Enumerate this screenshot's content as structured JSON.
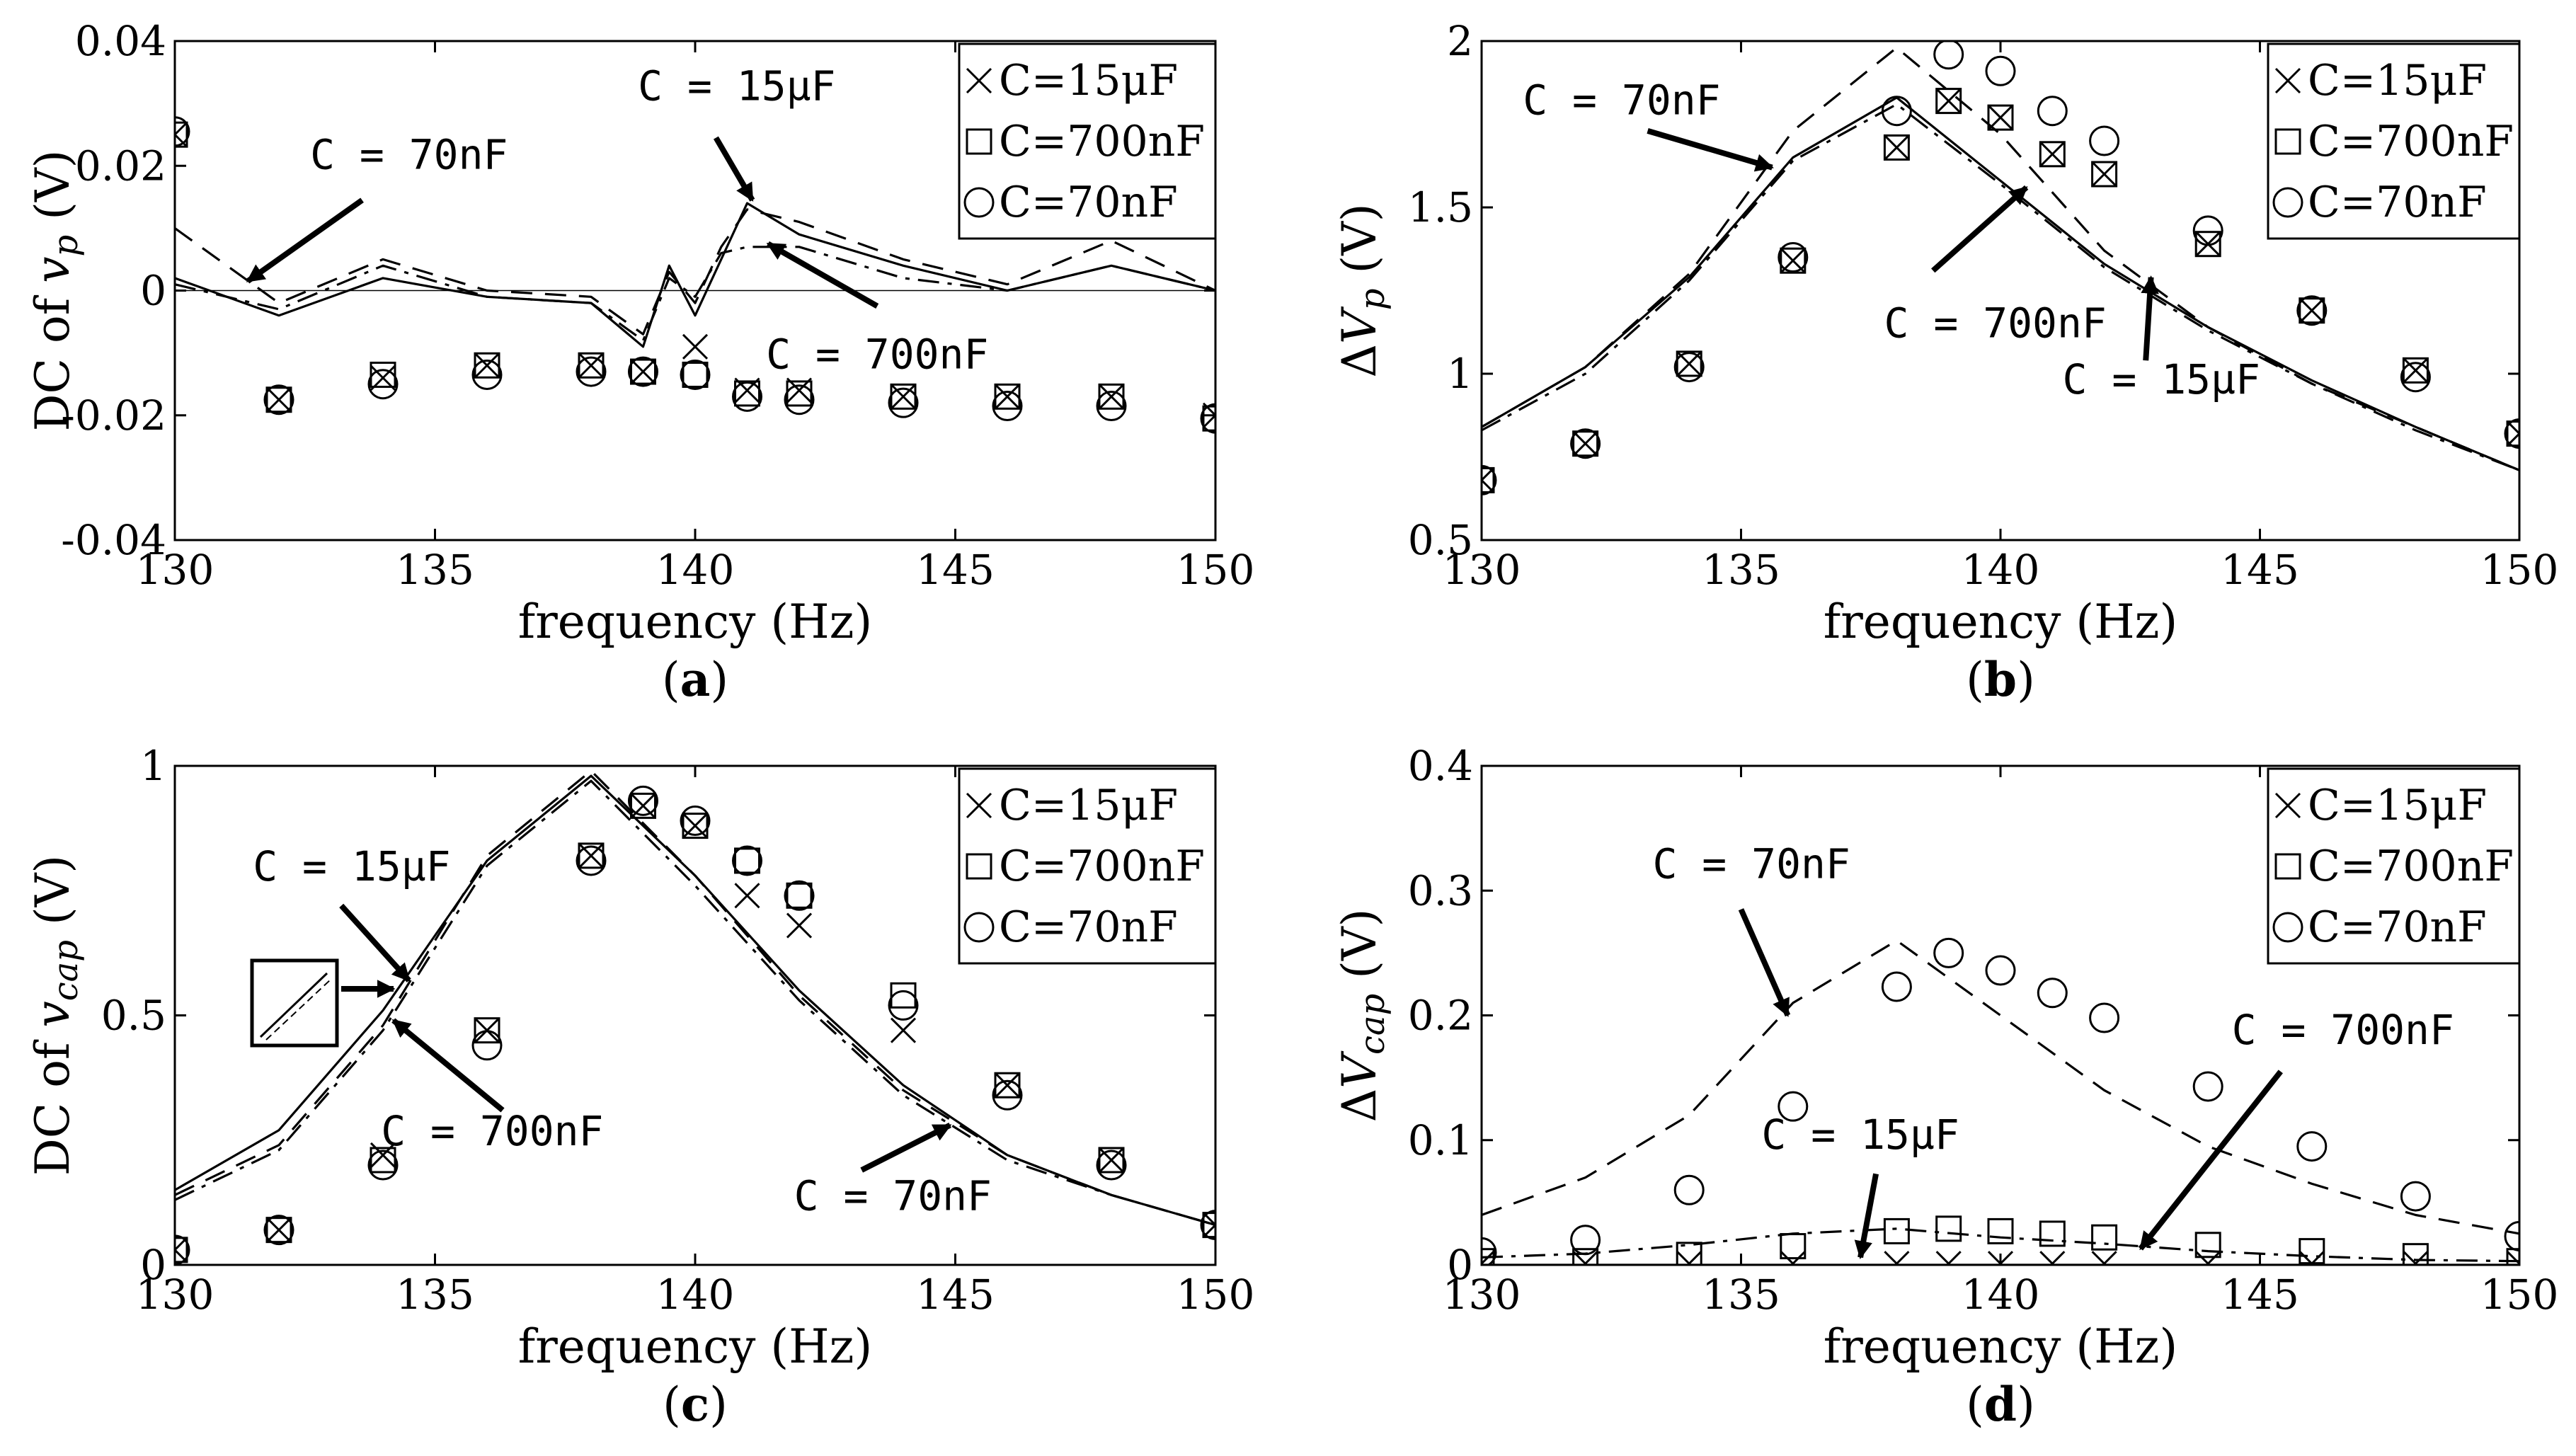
{
  "figure": {
    "styles": {
      "C=15μF": {
        "line": "solid",
        "marker": "x"
      },
      "C=700nF": {
        "line": "dashdot",
        "marker": "square"
      },
      "C=70nF": {
        "line": "dashed",
        "marker": "circle"
      }
    },
    "marker_color": "#000000",
    "line_color": "#000000"
  },
  "chart_data": [
    {
      "panel": "a",
      "panel_label": "(a)",
      "panel_letter": "a",
      "type": "line",
      "xlabel": "frequency (Hz)",
      "ylabel": "DC of vp (V)",
      "ylabel_parts": [
        "DC of ",
        "v",
        "p",
        " (V)"
      ],
      "xlim": [
        130,
        150
      ],
      "ylim": [
        -0.04,
        0.04
      ],
      "xticks": [
        "130",
        "135",
        "140",
        "145",
        "150"
      ],
      "yticks": [
        "-0.04",
        "-0.02",
        "0",
        "0.02",
        "0.04"
      ],
      "legend": [
        "C=15μF",
        "C=700nF",
        "C=70nF"
      ],
      "legend_placement": "top-right",
      "lines": [
        {
          "name": "C=15μF",
          "x": [
            130,
            132,
            134,
            136,
            138,
            139,
            139.5,
            140,
            140.5,
            141,
            142,
            144,
            146,
            148,
            150
          ],
          "y": [
            0.002,
            -0.004,
            0.002,
            -0.001,
            -0.002,
            -0.009,
            0.004,
            -0.004,
            0.005,
            0.014,
            0.009,
            0.004,
            0.0,
            0.004,
            0.0
          ]
        },
        {
          "name": "C=700nF",
          "x": [
            130,
            132,
            134,
            136,
            138,
            139,
            139.5,
            140,
            140.5,
            141,
            142,
            144,
            146,
            148,
            150
          ],
          "y": [
            0.001,
            -0.003,
            0.004,
            -0.001,
            -0.002,
            -0.008,
            0.002,
            -0.001,
            0.006,
            0.007,
            0.007,
            0.002,
            0.0,
            0.004,
            0.0
          ]
        },
        {
          "name": "C=70nF",
          "x": [
            130,
            132,
            134,
            136,
            138,
            139,
            139.5,
            140,
            140.5,
            141,
            142,
            144,
            146,
            148,
            150
          ],
          "y": [
            0.01,
            -0.002,
            0.005,
            0.0,
            -0.001,
            -0.007,
            0.003,
            -0.002,
            0.007,
            0.013,
            0.011,
            0.005,
            0.001,
            0.008,
            0.0
          ]
        }
      ],
      "markers": [
        {
          "name": "C=15μF",
          "x": [
            130,
            132,
            134,
            136,
            138,
            139,
            140,
            141,
            142,
            144,
            146,
            148,
            150
          ],
          "y": [
            0.025,
            -0.0175,
            -0.014,
            -0.012,
            -0.012,
            -0.013,
            -0.009,
            -0.016,
            -0.016,
            -0.017,
            -0.017,
            -0.017,
            -0.02
          ]
        },
        {
          "name": "C=700nF",
          "x": [
            130,
            132,
            134,
            136,
            138,
            139,
            140,
            141,
            142,
            144,
            146,
            148,
            150
          ],
          "y": [
            0.025,
            -0.0175,
            -0.0135,
            -0.012,
            -0.012,
            -0.013,
            -0.0135,
            -0.0165,
            -0.0165,
            -0.017,
            -0.017,
            -0.017,
            -0.0205
          ]
        },
        {
          "name": "C=70nF",
          "x": [
            130,
            132,
            134,
            136,
            138,
            139,
            140,
            141,
            142,
            144,
            146,
            148,
            150
          ],
          "y": [
            0.0255,
            -0.0175,
            -0.015,
            -0.0135,
            -0.013,
            -0.013,
            -0.0135,
            -0.017,
            -0.0175,
            -0.018,
            -0.0185,
            -0.0185,
            -0.0205
          ]
        }
      ],
      "annotations": [
        {
          "text": "C = 70nF",
          "tx": 134.5,
          "ty": 0.0195,
          "ax": 133.6,
          "ay": 0.0145,
          "hx": 131.4,
          "hy": 0.0015
        },
        {
          "text": "C = 15μF",
          "tx": 140.8,
          "ty": 0.0305,
          "ax": 140.4,
          "ay": 0.0245,
          "hx": 141.1,
          "hy": 0.0145
        },
        {
          "text": "C = 700nF",
          "tx": 143.5,
          "ty": -0.0125,
          "ax": 143.5,
          "ay": -0.0025,
          "hx": 141.4,
          "hy": 0.0075
        }
      ]
    },
    {
      "panel": "b",
      "panel_label": "(b)",
      "panel_letter": "b",
      "type": "line",
      "xlabel": "frequency (Hz)",
      "ylabel": "ΔVp (V)",
      "ylabel_parts": [
        "Δ",
        "V",
        "p",
        " (V)"
      ],
      "xlim": [
        130,
        150
      ],
      "ylim": [
        0.5,
        2
      ],
      "xticks": [
        "130",
        "135",
        "140",
        "145",
        "150"
      ],
      "yticks": [
        "0.5",
        "1",
        "1.5",
        "2"
      ],
      "legend": [
        "C=15μF",
        "C=700nF",
        "C=70nF"
      ],
      "legend_placement": "top-right",
      "lines": [
        {
          "name": "C=15μF",
          "x": [
            130,
            132,
            134,
            136,
            138,
            140,
            142,
            144,
            146,
            148,
            150
          ],
          "y": [
            0.84,
            1.02,
            1.29,
            1.65,
            1.83,
            1.58,
            1.33,
            1.14,
            0.98,
            0.84,
            0.71
          ]
        },
        {
          "name": "C=700nF",
          "x": [
            130,
            132,
            134,
            136,
            138,
            140,
            142,
            144,
            146,
            148,
            150
          ],
          "y": [
            0.83,
            1.0,
            1.28,
            1.64,
            1.81,
            1.57,
            1.32,
            1.13,
            0.97,
            0.83,
            0.71
          ]
        },
        {
          "name": "C=70nF",
          "x": [
            130,
            132,
            134,
            136,
            138,
            140,
            142,
            144,
            146,
            148,
            150
          ],
          "y": [
            0.84,
            1.02,
            1.3,
            1.73,
            1.98,
            1.72,
            1.37,
            1.14,
            0.97,
            0.84,
            0.71
          ]
        }
      ],
      "markers": [
        {
          "name": "C=15μF",
          "x": [
            130,
            132,
            134,
            136,
            138,
            139,
            140,
            141,
            142,
            144,
            146,
            148,
            150
          ],
          "y": [
            0.68,
            0.79,
            1.03,
            1.34,
            1.68,
            1.82,
            1.77,
            1.66,
            1.6,
            1.39,
            1.19,
            1.01,
            0.82
          ]
        },
        {
          "name": "C=700nF",
          "x": [
            130,
            132,
            134,
            136,
            138,
            139,
            140,
            141,
            142,
            144,
            146,
            148,
            150
          ],
          "y": [
            0.68,
            0.79,
            1.03,
            1.34,
            1.68,
            1.82,
            1.77,
            1.66,
            1.6,
            1.39,
            1.19,
            1.01,
            0.82
          ]
        },
        {
          "name": "C=70nF",
          "x": [
            130,
            132,
            134,
            136,
            138,
            139,
            140,
            141,
            142,
            144,
            146,
            148,
            150
          ],
          "y": [
            0.68,
            0.79,
            1.02,
            1.35,
            1.79,
            1.96,
            1.91,
            1.79,
            1.7,
            1.43,
            1.19,
            0.99,
            0.82
          ]
        }
      ],
      "annotations": [
        {
          "text": "C = 70nF",
          "tx": 132.7,
          "ty": 1.78,
          "ax": 133.2,
          "ay": 1.73,
          "hx": 135.6,
          "hy": 1.62
        },
        {
          "text": "C = 700nF",
          "tx": 139.9,
          "ty": 1.11,
          "ax": 138.7,
          "ay": 1.31,
          "hx": 140.5,
          "hy": 1.56
        },
        {
          "text": "C = 15μF",
          "tx": 143.1,
          "ty": 0.94,
          "ax": 142.8,
          "ay": 1.04,
          "hx": 142.9,
          "hy": 1.29
        }
      ]
    },
    {
      "panel": "c",
      "panel_label": "(c)",
      "panel_letter": "c",
      "type": "line",
      "xlabel": "frequency (Hz)",
      "ylabel": "DC of vcap (V)",
      "ylabel_parts": [
        "DC of ",
        "v",
        "cap",
        " (V)"
      ],
      "xlim": [
        130,
        150
      ],
      "ylim": [
        0,
        1
      ],
      "xticks": [
        "130",
        "135",
        "140",
        "145",
        "150"
      ],
      "yticks": [
        "0",
        "0.5",
        "1"
      ],
      "legend": [
        "C=15μF",
        "C=700nF",
        "C=70nF"
      ],
      "legend_placement": "top-right",
      "lines": [
        {
          "name": "C=15μF",
          "x": [
            130,
            132,
            134,
            136,
            138,
            140,
            142,
            144,
            146,
            148,
            150
          ],
          "y": [
            0.15,
            0.27,
            0.51,
            0.81,
            0.98,
            0.78,
            0.55,
            0.36,
            0.22,
            0.14,
            0.08
          ]
        },
        {
          "name": "C=700nF",
          "x": [
            130,
            132,
            134,
            136,
            138,
            140,
            142,
            144,
            146,
            148,
            150
          ],
          "y": [
            0.13,
            0.23,
            0.47,
            0.8,
            0.97,
            0.76,
            0.53,
            0.34,
            0.21,
            0.14,
            0.08
          ]
        },
        {
          "name": "C=70nF",
          "x": [
            130,
            132,
            134,
            136,
            138,
            140,
            142,
            144,
            146,
            148,
            150
          ],
          "y": [
            0.14,
            0.24,
            0.48,
            0.82,
            0.99,
            0.78,
            0.54,
            0.35,
            0.22,
            0.14,
            0.08
          ]
        }
      ],
      "markers": [
        {
          "name": "C=15μF",
          "x": [
            130,
            132,
            134,
            136,
            138,
            139,
            140,
            141,
            142,
            144,
            146,
            148,
            150
          ],
          "y": [
            0.03,
            0.07,
            0.22,
            0.47,
            0.82,
            0.92,
            0.88,
            0.74,
            0.68,
            0.47,
            0.36,
            0.21,
            0.08
          ]
        },
        {
          "name": "C=700nF",
          "x": [
            130,
            132,
            134,
            136,
            138,
            139,
            140,
            141,
            142,
            144,
            146,
            148,
            150
          ],
          "y": [
            0.03,
            0.07,
            0.21,
            0.47,
            0.82,
            0.92,
            0.88,
            0.81,
            0.74,
            0.54,
            0.36,
            0.21,
            0.08
          ]
        },
        {
          "name": "C=70nF",
          "x": [
            130,
            132,
            134,
            136,
            138,
            139,
            140,
            141,
            142,
            144,
            146,
            148,
            150
          ],
          "y": [
            0.03,
            0.07,
            0.2,
            0.44,
            0.81,
            0.93,
            0.89,
            0.81,
            0.74,
            0.52,
            0.34,
            0.2,
            0.08
          ]
        }
      ],
      "annotations": [
        {
          "text": "C = 15μF",
          "tx": 133.4,
          "ty": 0.77,
          "ax": 133.2,
          "ay": 0.72,
          "hx": 134.5,
          "hy": 0.57
        },
        {
          "text": "C = 700nF",
          "tx": 136.1,
          "ty": 0.24,
          "ax": 136.3,
          "ay": 0.31,
          "hx": 134.2,
          "hy": 0.49
        },
        {
          "text": "C = 70nF",
          "tx": 143.8,
          "ty": 0.11,
          "ax": 143.2,
          "ay": 0.19,
          "hx": 144.9,
          "hy": 0.28
        }
      ]
    },
    {
      "panel": "d",
      "panel_label": "(d)",
      "panel_letter": "d",
      "type": "line",
      "xlabel": "frequency (Hz)",
      "ylabel": "ΔVcap (V)",
      "ylabel_parts": [
        "Δ",
        "V",
        "cap",
        " (V)"
      ],
      "xlim": [
        130,
        150
      ],
      "ylim": [
        0,
        0.4
      ],
      "xticks": [
        "130",
        "135",
        "140",
        "145",
        "150"
      ],
      "yticks": [
        "0",
        "0.1",
        "0.2",
        "0.3",
        "0.4"
      ],
      "legend": [
        "C=15μF",
        "C=700nF",
        "C=70nF"
      ],
      "legend_placement": "top-right",
      "lines": [
        {
          "name": "C=15μF",
          "x": [
            130,
            150
          ],
          "y": [
            0.0,
            0.0
          ]
        },
        {
          "name": "C=700nF",
          "x": [
            130,
            132,
            134,
            136,
            138,
            140,
            142,
            144,
            146,
            148,
            150
          ],
          "y": [
            0.006,
            0.009,
            0.016,
            0.025,
            0.029,
            0.022,
            0.017,
            0.011,
            0.007,
            0.004,
            0.003
          ]
        },
        {
          "name": "C=70nF",
          "x": [
            130,
            132,
            134,
            136,
            138,
            140,
            142,
            144,
            146,
            148,
            150
          ],
          "y": [
            0.04,
            0.07,
            0.12,
            0.21,
            0.26,
            0.2,
            0.14,
            0.095,
            0.065,
            0.04,
            0.025
          ]
        }
      ],
      "markers": [
        {
          "name": "C=15μF",
          "x": [
            130,
            132,
            134,
            136,
            138,
            139,
            140,
            141,
            142,
            144,
            146,
            148,
            150
          ],
          "y": [
            0.001,
            0.001,
            0.001,
            0.001,
            0.001,
            0.001,
            0.001,
            0.001,
            0.001,
            0.001,
            0.001,
            0.001,
            0.001
          ]
        },
        {
          "name": "C=700nF",
          "x": [
            130,
            132,
            134,
            136,
            138,
            139,
            140,
            141,
            142,
            144,
            146,
            148,
            150
          ],
          "y": [
            0.003,
            0.003,
            0.008,
            0.015,
            0.027,
            0.029,
            0.027,
            0.025,
            0.022,
            0.016,
            0.011,
            0.007,
            0.003
          ]
        },
        {
          "name": "C=70nF",
          "x": [
            130,
            132,
            134,
            136,
            138,
            139,
            140,
            141,
            142,
            144,
            146,
            148,
            150
          ],
          "y": [
            0.01,
            0.02,
            0.06,
            0.127,
            0.223,
            0.25,
            0.236,
            0.218,
            0.198,
            0.143,
            0.095,
            0.055,
            0.023
          ]
        }
      ],
      "annotations": [
        {
          "text": "C = 70nF",
          "tx": 135.2,
          "ty": 0.31,
          "ax": 135.0,
          "ay": 0.285,
          "hx": 135.9,
          "hy": 0.2
        },
        {
          "text": "C = 15μF",
          "tx": 137.3,
          "ty": 0.093,
          "ax": 137.6,
          "ay": 0.073,
          "hx": 137.3,
          "hy": 0.006
        },
        {
          "text": "C = 700nF",
          "tx": 146.6,
          "ty": 0.177,
          "ax": 145.4,
          "ay": 0.155,
          "hx": 142.7,
          "hy": 0.013
        }
      ]
    }
  ]
}
